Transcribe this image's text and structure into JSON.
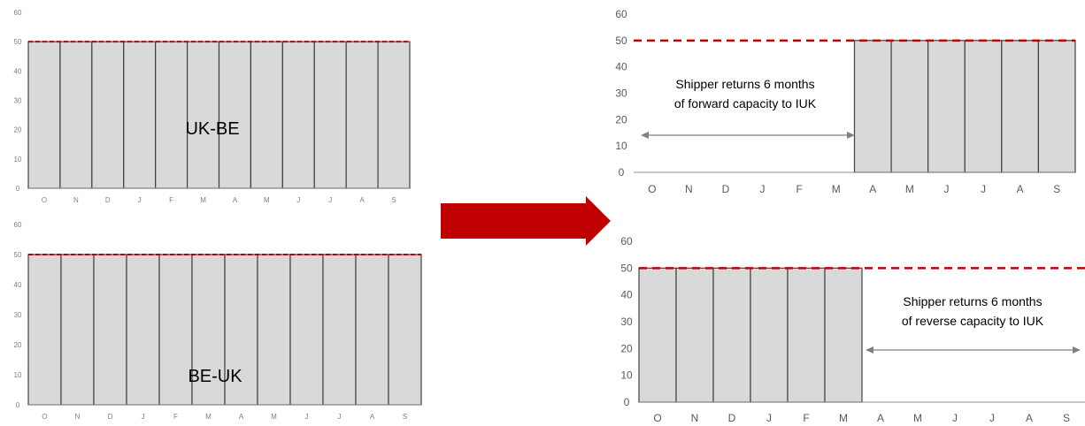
{
  "arrow_color": "#c00000",
  "bar_fill": "#d9d9d9",
  "bar_stroke": "#404040",
  "limit_color": "#c00000",
  "chart_data": [
    {
      "type": "bar",
      "chart_label": "UK-BE",
      "categories": [
        "O",
        "N",
        "D",
        "J",
        "F",
        "M",
        "A",
        "M",
        "J",
        "J",
        "A",
        "S"
      ],
      "values": [
        50,
        50,
        50,
        50,
        50,
        50,
        50,
        50,
        50,
        50,
        50,
        50
      ],
      "ylim": [
        0,
        60
      ],
      "yticks": [
        0,
        10,
        20,
        30,
        40,
        50,
        60
      ],
      "reference_line": 50
    },
    {
      "type": "bar",
      "chart_label": "BE-UK",
      "categories": [
        "O",
        "N",
        "D",
        "J",
        "F",
        "M",
        "A",
        "M",
        "J",
        "J",
        "A",
        "S"
      ],
      "values": [
        50,
        50,
        50,
        50,
        50,
        50,
        50,
        50,
        50,
        50,
        50,
        50
      ],
      "ylim": [
        0,
        60
      ],
      "yticks": [
        0,
        10,
        20,
        30,
        40,
        50,
        60
      ],
      "reference_line": 50
    },
    {
      "type": "bar",
      "annotation_lines": [
        "Shipper returns 6 months",
        "of forward capacity to IUK"
      ],
      "annotation_span": [
        "O",
        "M"
      ],
      "categories": [
        "O",
        "N",
        "D",
        "J",
        "F",
        "M",
        "A",
        "M",
        "J",
        "J",
        "A",
        "S"
      ],
      "values": [
        0,
        0,
        0,
        0,
        0,
        0,
        50,
        50,
        50,
        50,
        50,
        50
      ],
      "ylim": [
        0,
        60
      ],
      "yticks": [
        0,
        10,
        20,
        30,
        40,
        50,
        60
      ],
      "reference_line": 50
    },
    {
      "type": "bar",
      "annotation_lines": [
        "Shipper returns 6 months",
        "of reverse capacity to IUK"
      ],
      "annotation_span": [
        "A",
        "S"
      ],
      "categories": [
        "O",
        "N",
        "D",
        "J",
        "F",
        "M",
        "A",
        "M",
        "J",
        "J",
        "A",
        "S"
      ],
      "values": [
        50,
        50,
        50,
        50,
        50,
        50,
        0,
        0,
        0,
        0,
        0,
        0
      ],
      "ylim": [
        0,
        60
      ],
      "yticks": [
        0,
        10,
        20,
        30,
        40,
        50,
        60
      ],
      "reference_line": 50
    }
  ]
}
